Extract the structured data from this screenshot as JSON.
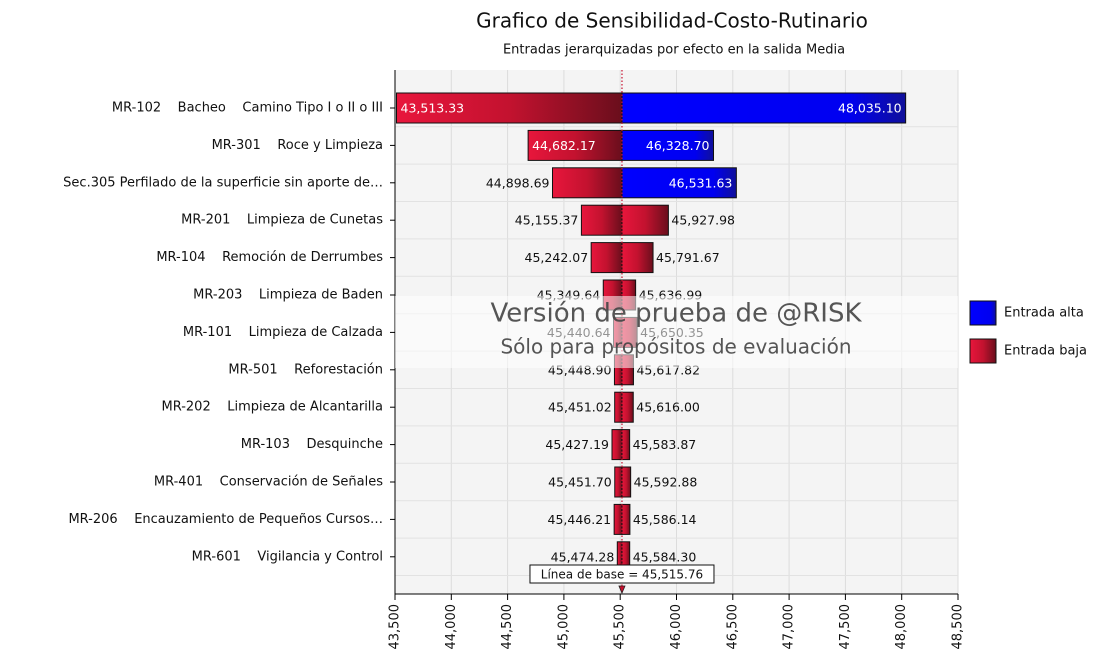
{
  "chart_data": {
    "type": "tornado",
    "title": "Grafico de Sensibilidad-Costo-Rutinario",
    "subtitle": "Entradas jerarquizadas por efecto en la salida Media",
    "categories": [
      "MR-102    Bacheo    Camino Tipo I o II o III",
      "MR-301    Roce y Limpieza",
      "Sec.305 Perfilado de la superficie sin aporte de…",
      "MR-201    Limpieza de Cunetas",
      "MR-104    Remoción de Derrumbes",
      "MR-203    Limpieza de Baden",
      "MR-101    Limpieza de Calzada",
      "MR-501    Reforestación",
      "MR-202    Limpieza de Alcantarilla",
      "MR-103    Desquinche",
      "MR-401    Conservación de Señales",
      "MR-206    Encauzamiento de Pequeños Cursos…",
      "MR-601    Vigilancia y Control"
    ],
    "series": [
      {
        "name": "Entrada alta",
        "color": "#0000ff"
      },
      {
        "name": "Entrada baja",
        "color": "#c8102e"
      }
    ],
    "left_values": [
      43513.33,
      44682.17,
      44898.69,
      45155.37,
      45242.07,
      45349.64,
      45440.64,
      45448.9,
      45451.02,
      45427.19,
      45451.7,
      45446.21,
      45474.28
    ],
    "left_value_labels": [
      "43,513.33",
      "44,682.17",
      "44,898.69",
      "45,155.37",
      "45,242.07",
      "45,349.64",
      "45,440.64",
      "45,448.90",
      "45,451.02",
      "45,427.19",
      "45,451.70",
      "45,446.21",
      "45,474.28"
    ],
    "left_series": [
      1,
      1,
      1,
      1,
      1,
      1,
      1,
      1,
      1,
      1,
      1,
      1,
      1
    ],
    "right_values": [
      48035.1,
      46328.7,
      46531.63,
      45927.98,
      45791.67,
      45636.99,
      45650.35,
      45617.82,
      45616.0,
      45583.87,
      45592.88,
      45586.14,
      45584.3
    ],
    "right_value_labels": [
      "48,035.10",
      "46,328.70",
      "46,531.63",
      "45,927.98",
      "45,791.67",
      "45,636.99",
      "45,650.35",
      "45,617.82",
      "45,616.00",
      "45,583.87",
      "45,592.88",
      "45,586.14",
      "45,584.30"
    ],
    "right_series": [
      0,
      0,
      0,
      1,
      1,
      1,
      1,
      1,
      1,
      1,
      1,
      1,
      1
    ],
    "baseline": 45515.76,
    "baseline_label": "Línea de base = 45,515.76",
    "xlim": [
      43500,
      48500
    ],
    "xticks": [
      {
        "value": 43500,
        "label": "43,500"
      },
      {
        "value": 44000,
        "label": "44,000"
      },
      {
        "value": 44500,
        "label": "44,500"
      },
      {
        "value": 45000,
        "label": "45,000"
      },
      {
        "value": 45500,
        "label": "45,500"
      },
      {
        "value": 46000,
        "label": "46,000"
      },
      {
        "value": 46500,
        "label": "46,500"
      },
      {
        "value": 47000,
        "label": "47,000"
      },
      {
        "value": 47500,
        "label": "47,500"
      },
      {
        "value": 48000,
        "label": "48,000"
      },
      {
        "value": 48500,
        "label": "48,500"
      }
    ],
    "grid": true,
    "legend_position": "right",
    "watermark": [
      "Versión de prueba de @RISK",
      "Sólo para propósitos de evaluación"
    ]
  }
}
